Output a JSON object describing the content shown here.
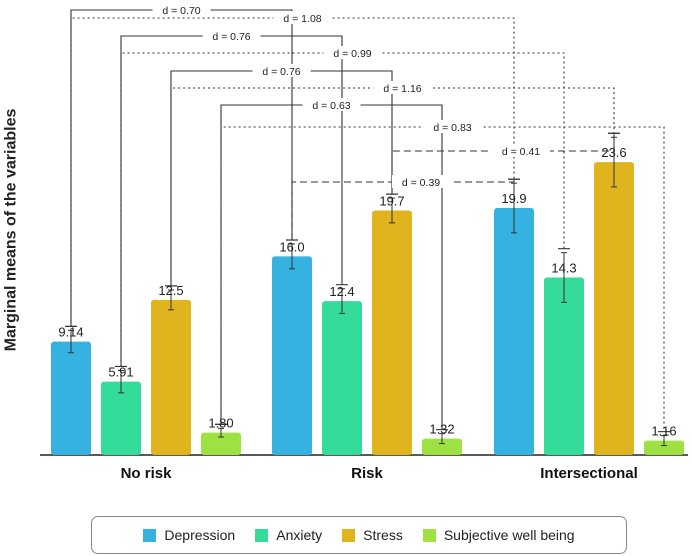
{
  "chart_data": {
    "type": "bar",
    "ylabel": "Marginal means of the variables",
    "xlabel": "",
    "ylim": [
      0,
      36.5
    ],
    "categories": [
      "No risk",
      "Risk",
      "Intersectional"
    ],
    "series": [
      {
        "name": "Depression",
        "color": "#35b2e0",
        "values": [
          9.14,
          16.0,
          19.9
        ],
        "labels": [
          "9.14",
          "16.0",
          "19.9"
        ],
        "err": [
          0.9,
          1.0,
          2.0
        ]
      },
      {
        "name": "Anxiety",
        "color": "#35db98",
        "values": [
          5.91,
          12.4,
          14.3
        ],
        "labels": [
          "5.91",
          "12.4",
          "14.3"
        ],
        "err": [
          0.9,
          1.0,
          2.0
        ]
      },
      {
        "name": "Stress",
        "color": "#e0b41f",
        "values": [
          12.5,
          19.7,
          23.6
        ],
        "labels": [
          "12.5",
          "19.7",
          "23.6"
        ],
        "err": [
          0.8,
          1.0,
          2.0
        ]
      },
      {
        "name": "Subjective well being",
        "color": "#9ee142",
        "values": [
          1.8,
          1.32,
          1.16
        ],
        "labels": [
          "1.80",
          "1.32",
          "1.16"
        ],
        "err": [
          0.35,
          0.4,
          0.4
        ]
      }
    ],
    "annotations": [
      {
        "label": "d = 0.70",
        "series": 0,
        "from": 0,
        "to": 1,
        "style": "solid"
      },
      {
        "label": "d = 1.08",
        "series": 0,
        "from": 0,
        "to": 2,
        "style": "dotted"
      },
      {
        "label": "d = 0.76",
        "series": 1,
        "from": 0,
        "to": 1,
        "style": "solid"
      },
      {
        "label": "d = 0.99",
        "series": 1,
        "from": 0,
        "to": 2,
        "style": "dotted"
      },
      {
        "label": "d = 0.76",
        "series": 2,
        "from": 0,
        "to": 1,
        "style": "solid"
      },
      {
        "label": "d = 1.16",
        "series": 2,
        "from": 0,
        "to": 2,
        "style": "dotted"
      },
      {
        "label": "d = 0.63",
        "series": 3,
        "from": 0,
        "to": 1,
        "style": "solid"
      },
      {
        "label": "d = 0.83",
        "series": 3,
        "from": 0,
        "to": 2,
        "style": "dotted"
      },
      {
        "label": "d = 0.41",
        "series": 2,
        "from": 1,
        "to": 2,
        "style": "dashed"
      },
      {
        "label": "d = 0.39",
        "series": 0,
        "from": 1,
        "to": 2,
        "style": "dashed"
      }
    ]
  }
}
